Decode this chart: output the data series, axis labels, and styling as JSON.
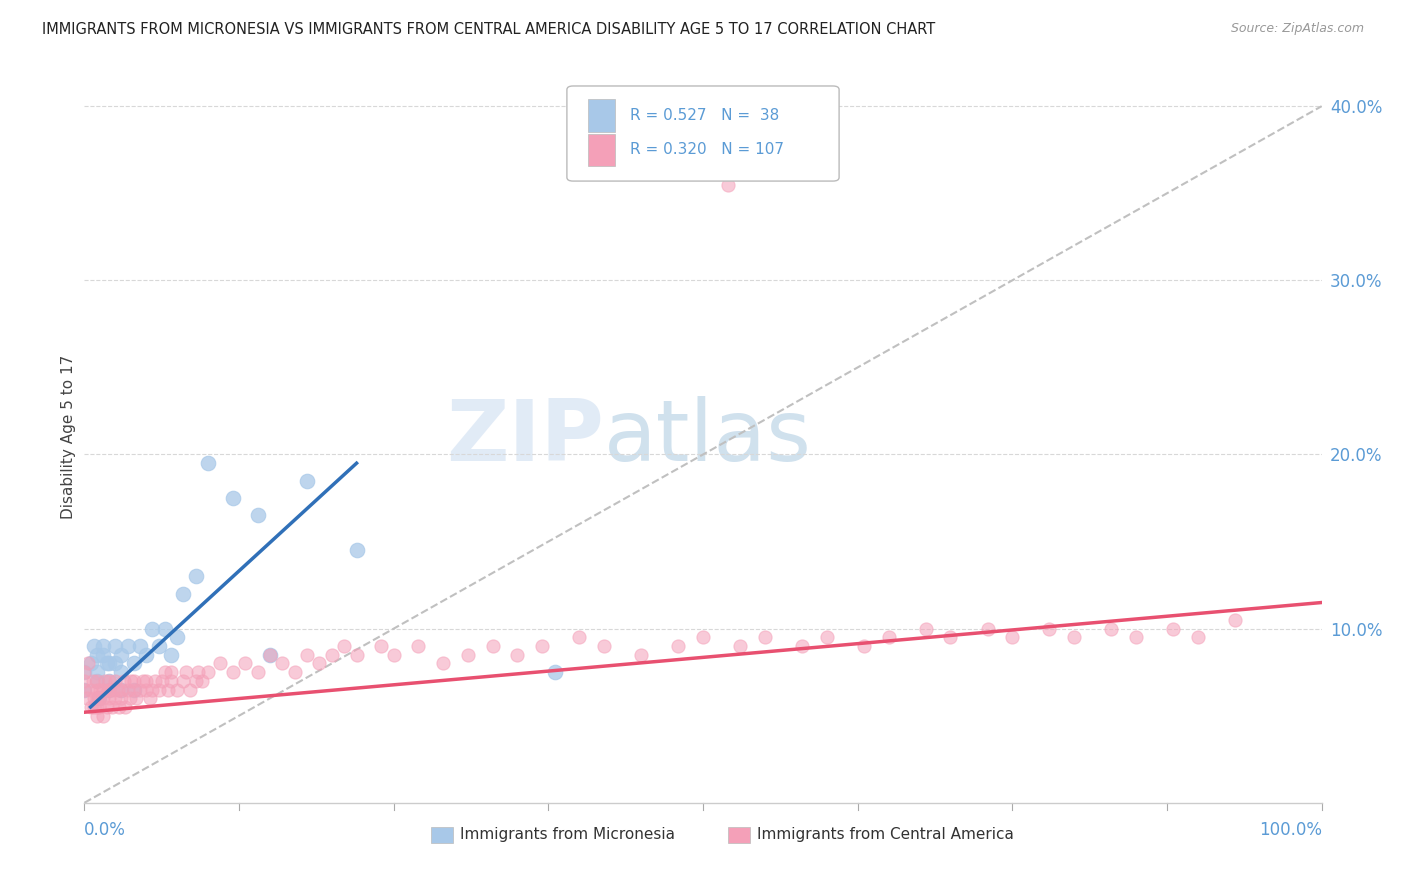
{
  "title": "IMMIGRANTS FROM MICRONESIA VS IMMIGRANTS FROM CENTRAL AMERICA DISABILITY AGE 5 TO 17 CORRELATION CHART",
  "source": "Source: ZipAtlas.com",
  "ylabel": "Disability Age 5 to 17",
  "xlim": [
    0.0,
    1.0
  ],
  "ylim": [
    0.0,
    0.42
  ],
  "blue_R": 0.527,
  "blue_N": 38,
  "pink_R": 0.32,
  "pink_N": 107,
  "blue_color": "#a8c8e8",
  "pink_color": "#f4a0b8",
  "blue_line_color": "#3070b8",
  "pink_line_color": "#e85070",
  "ref_line_color": "#c0c0c0",
  "grid_color": "#d8d8d8",
  "background_color": "#ffffff",
  "tick_color": "#5b9bd5",
  "yticks": [
    0.1,
    0.2,
    0.3,
    0.4
  ],
  "ytick_labels": [
    "10.0%",
    "20.0%",
    "30.0%",
    "40.0%"
  ],
  "blue_x": [
    0.0,
    0.0,
    0.005,
    0.008,
    0.01,
    0.01,
    0.01,
    0.012,
    0.015,
    0.015,
    0.018,
    0.02,
    0.02,
    0.02,
    0.025,
    0.025,
    0.03,
    0.03,
    0.03,
    0.035,
    0.04,
    0.04,
    0.045,
    0.05,
    0.055,
    0.06,
    0.065,
    0.07,
    0.075,
    0.08,
    0.09,
    0.1,
    0.12,
    0.14,
    0.15,
    0.18,
    0.22,
    0.38
  ],
  "blue_y": [
    0.075,
    0.065,
    0.08,
    0.09,
    0.07,
    0.075,
    0.085,
    0.06,
    0.085,
    0.09,
    0.08,
    0.07,
    0.08,
    0.065,
    0.09,
    0.08,
    0.085,
    0.075,
    0.065,
    0.09,
    0.08,
    0.065,
    0.09,
    0.085,
    0.1,
    0.09,
    0.1,
    0.085,
    0.095,
    0.12,
    0.13,
    0.195,
    0.175,
    0.165,
    0.085,
    0.185,
    0.145,
    0.075
  ],
  "pink_x": [
    0.0,
    0.0,
    0.0,
    0.002,
    0.003,
    0.005,
    0.005,
    0.007,
    0.008,
    0.008,
    0.01,
    0.01,
    0.01,
    0.01,
    0.01,
    0.012,
    0.012,
    0.013,
    0.015,
    0.015,
    0.015,
    0.017,
    0.018,
    0.019,
    0.02,
    0.02,
    0.02,
    0.022,
    0.023,
    0.025,
    0.025,
    0.027,
    0.028,
    0.03,
    0.03,
    0.032,
    0.033,
    0.035,
    0.037,
    0.038,
    0.04,
    0.04,
    0.042,
    0.045,
    0.047,
    0.05,
    0.05,
    0.053,
    0.055,
    0.057,
    0.06,
    0.063,
    0.065,
    0.068,
    0.07,
    0.07,
    0.075,
    0.08,
    0.082,
    0.085,
    0.09,
    0.092,
    0.095,
    0.1,
    0.11,
    0.12,
    0.13,
    0.14,
    0.15,
    0.16,
    0.17,
    0.18,
    0.19,
    0.2,
    0.21,
    0.22,
    0.24,
    0.25,
    0.27,
    0.29,
    0.31,
    0.33,
    0.35,
    0.37,
    0.4,
    0.42,
    0.45,
    0.48,
    0.5,
    0.53,
    0.55,
    0.58,
    0.6,
    0.63,
    0.65,
    0.68,
    0.7,
    0.73,
    0.75,
    0.78,
    0.8,
    0.83,
    0.85,
    0.88,
    0.9,
    0.93,
    0.52
  ],
  "pink_y": [
    0.065,
    0.07,
    0.075,
    0.06,
    0.08,
    0.055,
    0.065,
    0.07,
    0.06,
    0.055,
    0.05,
    0.055,
    0.06,
    0.065,
    0.07,
    0.055,
    0.06,
    0.065,
    0.05,
    0.06,
    0.065,
    0.07,
    0.055,
    0.065,
    0.06,
    0.065,
    0.07,
    0.055,
    0.065,
    0.06,
    0.07,
    0.065,
    0.055,
    0.06,
    0.065,
    0.07,
    0.055,
    0.065,
    0.06,
    0.07,
    0.065,
    0.07,
    0.06,
    0.065,
    0.07,
    0.065,
    0.07,
    0.06,
    0.065,
    0.07,
    0.065,
    0.07,
    0.075,
    0.065,
    0.07,
    0.075,
    0.065,
    0.07,
    0.075,
    0.065,
    0.07,
    0.075,
    0.07,
    0.075,
    0.08,
    0.075,
    0.08,
    0.075,
    0.085,
    0.08,
    0.075,
    0.085,
    0.08,
    0.085,
    0.09,
    0.085,
    0.09,
    0.085,
    0.09,
    0.08,
    0.085,
    0.09,
    0.085,
    0.09,
    0.095,
    0.09,
    0.085,
    0.09,
    0.095,
    0.09,
    0.095,
    0.09,
    0.095,
    0.09,
    0.095,
    0.1,
    0.095,
    0.1,
    0.095,
    0.1,
    0.095,
    0.1,
    0.095,
    0.1,
    0.095,
    0.105,
    0.355
  ],
  "blue_line_x0": 0.005,
  "blue_line_x1": 0.22,
  "blue_line_y0": 0.055,
  "blue_line_y1": 0.195,
  "pink_line_x0": 0.0,
  "pink_line_x1": 1.0,
  "pink_line_y0": 0.052,
  "pink_line_y1": 0.115
}
